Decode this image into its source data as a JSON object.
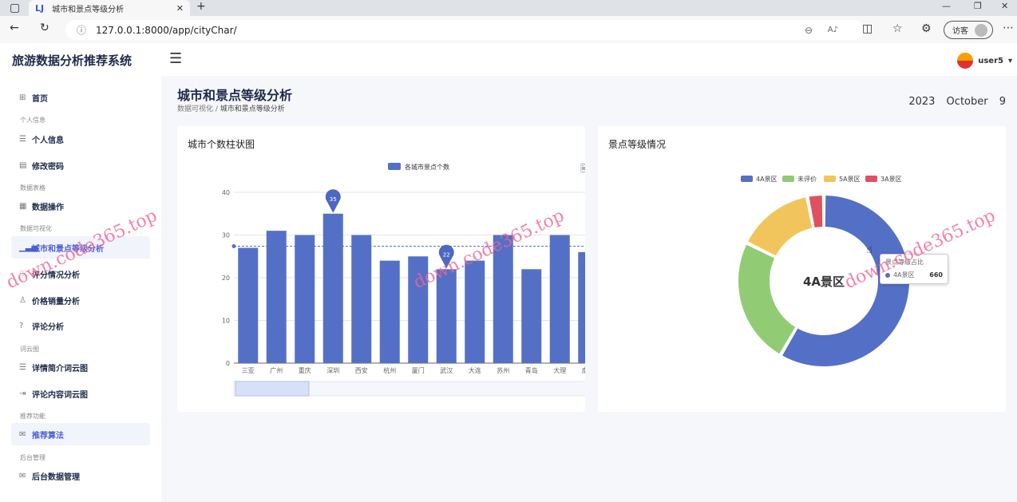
{
  "browser": {
    "tab_title": "城市和景点等级分析",
    "url": "127.0.0.1:8000/app/cityChar/",
    "guest_label": "访客"
  },
  "app": {
    "brand": "旅游数据分析推荐系统",
    "user": "user5"
  },
  "sidebar": {
    "home": "首页",
    "sections": [
      "个人信息",
      "数据表格",
      "数据可视化",
      "词云图",
      "推荐功能",
      "后台管理"
    ],
    "items": [
      "个人信息",
      "修改密码",
      "数据操作",
      "城市和景点等级分析",
      "评分情况分析",
      "价格销量分析",
      "评论分析",
      "详情简介词云图",
      "评论内容词云图",
      "推荐算法",
      "后台数据管理"
    ]
  },
  "page": {
    "title": "城市和景点等级分析",
    "breadcrumb": [
      "数据可视化",
      "城市和景点等级分析"
    ],
    "date": "2023 October 9"
  },
  "watermark": "down.code365.top",
  "chart_data": [
    {
      "type": "bar",
      "title": "城市个数柱状图",
      "legend": "各城市景点个数",
      "color": "#5470c6",
      "categories": [
        "三亚",
        "广州",
        "重庆",
        "深圳",
        "西安",
        "杭州",
        "厦门",
        "武汉",
        "大连",
        "苏州",
        "青岛",
        "大理",
        "南京"
      ],
      "values": [
        27,
        31,
        30,
        35,
        30,
        24,
        25,
        22,
        24,
        30,
        22,
        30,
        26
      ],
      "ylim": [
        0,
        40
      ],
      "yticks": [
        0,
        10,
        20,
        30,
        40
      ],
      "mark_points": {
        "max": 35,
        "min": 22
      },
      "average_line": true,
      "datazoom": true
    },
    {
      "type": "pie",
      "title": "景点等级情况",
      "donut": true,
      "center_label": "4A景区",
      "labels": [
        "4A景区",
        "未评价",
        "5A景区",
        "3A景区"
      ],
      "values": [
        660,
        270,
        165,
        35
      ],
      "colors": [
        "#5470c6",
        "#91cc75",
        "#f2c55c",
        "#e0505f"
      ],
      "tooltip": {
        "title": "景点等级占比",
        "name": "4A景区",
        "value": "660"
      }
    }
  ]
}
